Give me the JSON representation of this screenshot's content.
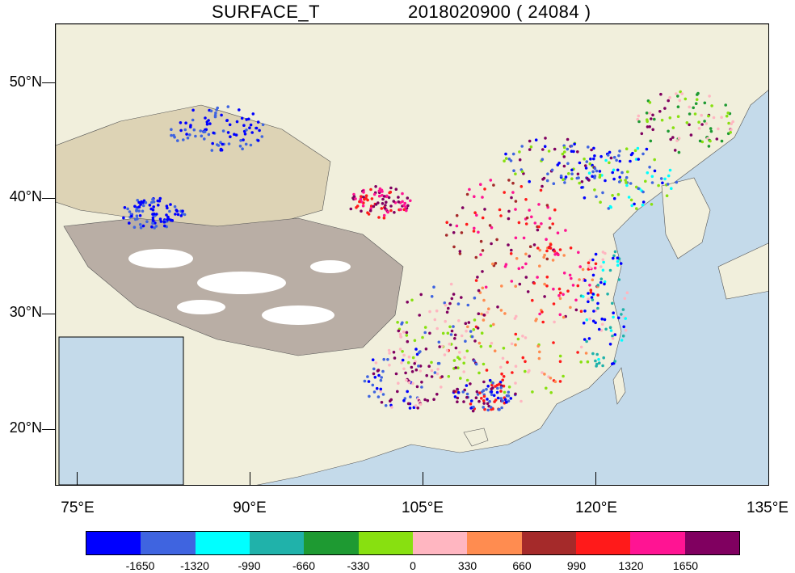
{
  "title": {
    "variable": "SURFACE_T",
    "time": "2018020900 ( 24084 )"
  },
  "map": {
    "lat_labels": [
      "50°N",
      "40°N",
      "30°N",
      "20°N"
    ],
    "lon_labels": [
      "75°E",
      "90°E",
      "105°E",
      "120°E",
      "135°E"
    ],
    "colors": {
      "ocean": "#c4daea",
      "lowland": "#f1efdc",
      "highland": "#ddd3b5",
      "plateau": "#b9aea5",
      "snow": "#ffffff",
      "border": "#555555"
    }
  },
  "colorbar": {
    "colors": [
      "#0000ff",
      "#3f64e0",
      "#00ffff",
      "#20b2aa",
      "#1e9a32",
      "#88e010",
      "#ffb6c1",
      "#ff8c50",
      "#a52a2a",
      "#ff1a1a",
      "#ff1493",
      "#800060"
    ],
    "labels": [
      "-1650",
      "-1320",
      "-990",
      "-660",
      "-330",
      "0",
      "330",
      "660",
      "990",
      "1320",
      "1650"
    ]
  }
}
